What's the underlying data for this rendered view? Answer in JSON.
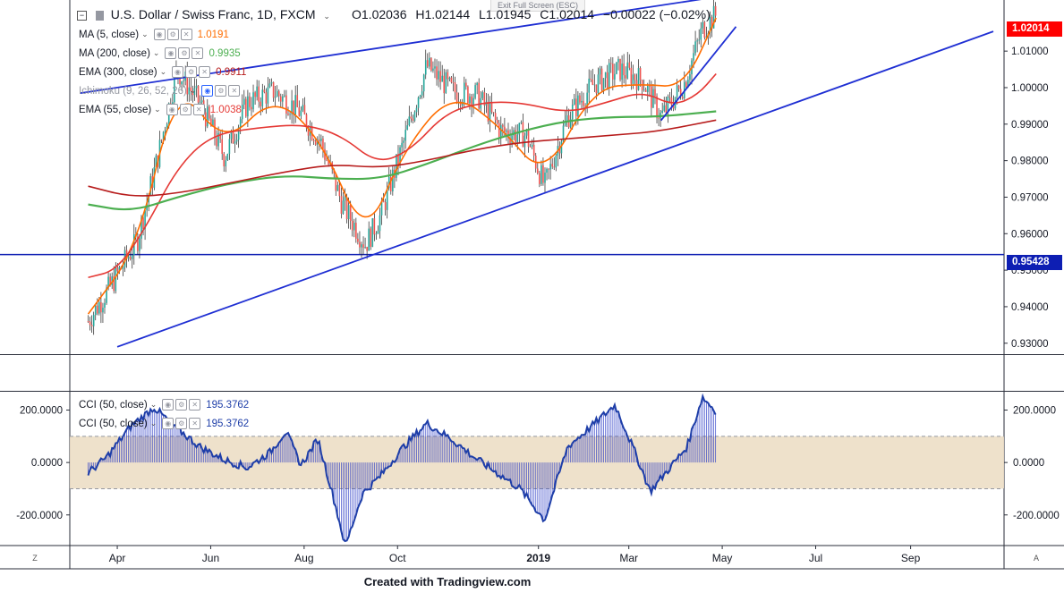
{
  "exit_fullscreen": "Exit Full Screen (ESC)",
  "header": {
    "title": "U.S. Dollar / Swiss Franc, 1D, FXCM",
    "open": "O1.02036",
    "high": "H1.02144",
    "low": "L1.01945",
    "close": "C1.02014",
    "change": "−0.00022 (−0.02%)"
  },
  "indicators": [
    {
      "label": "MA (5, close)",
      "value": "1.0191",
      "color": "#ff6d00"
    },
    {
      "label": "MA (200, close)",
      "value": "0.9935",
      "color": "#4caf50"
    },
    {
      "label": "EMA (300, close)",
      "value": "0.9911",
      "color": "#b71c1c"
    },
    {
      "label": "Ichimoku (9, 26, 52, 26)",
      "value": "",
      "color": "#9598a1"
    },
    {
      "label": "EMA (55, close)",
      "value": "1.0038",
      "color": "#e53935"
    }
  ],
  "cci_legend": [
    {
      "label": "CCI (50, close)",
      "value": "195.3762",
      "color": "#1e3ea8"
    },
    {
      "label": "CCI (50, close)",
      "value": "195.3762",
      "color": "#1e3ea8"
    }
  ],
  "price_axis": {
    "ticks": [
      "1.01000",
      "1.00000",
      "0.99000",
      "0.98000",
      "0.97000",
      "0.96000",
      "0.95000",
      "0.94000",
      "0.93000"
    ],
    "current_label": "1.02014",
    "current_color": "#ff0000",
    "hline_label": "0.95428",
    "hline_color": "#0d1eb3"
  },
  "cci_axis": {
    "ticks_right": [
      "200.0000",
      "0.0000",
      "-200.0000"
    ],
    "ticks_left": [
      "200.0000",
      "0.0000",
      "-200.0000"
    ]
  },
  "time_axis": {
    "labels": [
      "Apr",
      "Jun",
      "Aug",
      "Oct",
      "2019",
      "Mar",
      "May",
      "Jul",
      "Sep"
    ]
  },
  "corner_left": "Z",
  "corner_right": "A",
  "footer": "Created with Tradingview.com",
  "chart_data": {
    "type": "line",
    "title": "U.S. Dollar / Swiss Franc, 1D, FXCM",
    "x_range": [
      "2018-03",
      "2019-11"
    ],
    "ylim": [
      0.927,
      1.024
    ],
    "last_close": 1.02014,
    "horizontal_line": 0.95428,
    "series": [
      {
        "name": "USDCHF close",
        "color": "#26a69a",
        "x": [
          "2018-03-13",
          "2018-03-28",
          "2018-04-14",
          "2018-04-28",
          "2018-05-10",
          "2018-05-26",
          "2018-06-10",
          "2018-06-25",
          "2018-07-12",
          "2018-07-28",
          "2018-08-12",
          "2018-08-26",
          "2018-09-10",
          "2018-09-20",
          "2018-10-05",
          "2018-10-20",
          "2018-11-06",
          "2018-11-22",
          "2018-12-08",
          "2018-12-24",
          "2019-01-05",
          "2019-01-20",
          "2019-02-06",
          "2019-02-23",
          "2019-03-10",
          "2019-03-22",
          "2019-04-06",
          "2019-04-18",
          "2019-04-27"
        ],
        "y": [
          0.936,
          0.946,
          0.958,
          0.982,
          1.005,
          0.995,
          0.981,
          0.996,
          0.999,
          0.994,
          0.985,
          0.968,
          0.957,
          0.965,
          0.985,
          1.006,
          0.999,
          0.998,
          0.988,
          0.987,
          0.973,
          0.992,
          1.001,
          1.005,
          1.002,
          0.992,
          1.001,
          1.016,
          1.02
        ]
      },
      {
        "name": "MA (5, close)",
        "color": "#ff6d00",
        "x": [
          "2018-03-13",
          "2018-04-14",
          "2018-05-10",
          "2018-06-10",
          "2018-07-12",
          "2018-08-12",
          "2018-09-10",
          "2018-10-05",
          "2018-11-06",
          "2018-12-08",
          "2019-01-05",
          "2019-02-06",
          "2019-03-10",
          "2019-04-06",
          "2019-04-27"
        ],
        "y": [
          0.938,
          0.956,
          1.002,
          0.984,
          0.998,
          0.986,
          0.958,
          0.983,
          0.999,
          0.989,
          0.975,
          1.0,
          1.001,
          1.0,
          1.0191
        ]
      },
      {
        "name": "EMA (55, close)",
        "color": "#e53935",
        "x": [
          "2018-03-13",
          "2018-04-01",
          "2018-04-20",
          "2018-05-10",
          "2018-06-01",
          "2018-07-01",
          "2018-08-01",
          "2018-08-25",
          "2018-09-18",
          "2018-10-10",
          "2018-11-01",
          "2018-11-25",
          "2018-12-20",
          "2019-01-20",
          "2019-02-15",
          "2019-03-10",
          "2019-03-30",
          "2019-04-15",
          "2019-04-27"
        ],
        "y": [
          0.948,
          0.95,
          0.962,
          0.978,
          0.987,
          0.989,
          0.99,
          0.987,
          0.979,
          0.983,
          0.993,
          0.996,
          0.996,
          0.993,
          0.996,
          0.999,
          0.995,
          0.998,
          1.0038
        ]
      },
      {
        "name": "MA (200, close)",
        "color": "#4caf50",
        "x": [
          "2018-03-13",
          "2018-04-10",
          "2018-05-10",
          "2018-06-15",
          "2018-07-20",
          "2018-08-20",
          "2018-09-20",
          "2018-10-20",
          "2018-11-20",
          "2018-12-20",
          "2019-01-20",
          "2019-02-20",
          "2019-03-20",
          "2019-04-27"
        ],
        "y": [
          0.968,
          0.966,
          0.97,
          0.974,
          0.976,
          0.975,
          0.975,
          0.979,
          0.984,
          0.988,
          0.991,
          0.992,
          0.992,
          0.9935
        ]
      },
      {
        "name": "EMA (300, close)",
        "color": "#b71c1c",
        "x": [
          "2018-03-13",
          "2018-04-10",
          "2018-05-10",
          "2018-06-15",
          "2018-07-20",
          "2018-08-20",
          "2018-09-20",
          "2018-10-20",
          "2018-11-20",
          "2018-12-20",
          "2019-01-20",
          "2019-02-20",
          "2019-03-20",
          "2019-04-27"
        ],
        "y": [
          0.973,
          0.97,
          0.971,
          0.974,
          0.977,
          0.979,
          0.978,
          0.98,
          0.983,
          0.985,
          0.986,
          0.987,
          0.988,
          0.9911
        ]
      }
    ],
    "trendlines": [
      {
        "from": [
          "2018-03-08",
          0.9985
        ],
        "to": [
          "2019-05-06",
          1.0254
        ]
      },
      {
        "from": [
          "2018-04-01",
          0.929
        ],
        "to": [
          "2019-10-25",
          1.0154
        ]
      },
      {
        "from": [
          "2019-03-22",
          0.991
        ],
        "to": [
          "2019-05-10",
          1.0167
        ]
      }
    ],
    "cci": {
      "name": "CCI (50, close)",
      "ylim": [
        -310,
        270
      ],
      "band": [
        -100,
        100
      ],
      "last": 195.3762,
      "x": [
        "2018-03-13",
        "2018-03-25",
        "2018-04-10",
        "2018-04-25",
        "2018-05-08",
        "2018-05-25",
        "2018-06-10",
        "2018-06-25",
        "2018-07-10",
        "2018-07-20",
        "2018-07-30",
        "2018-08-10",
        "2018-08-20",
        "2018-08-28",
        "2018-09-08",
        "2018-09-20",
        "2018-10-05",
        "2018-10-20",
        "2018-11-05",
        "2018-11-20",
        "2018-12-05",
        "2018-12-20",
        "2019-01-05",
        "2019-01-20",
        "2019-02-05",
        "2019-02-20",
        "2019-03-05",
        "2019-03-15",
        "2019-03-25",
        "2019-04-08",
        "2019-04-18",
        "2019-04-27"
      ],
      "y": [
        -40,
        20,
        140,
        210,
        140,
        60,
        10,
        -20,
        40,
        120,
        -10,
        90,
        -130,
        -320,
        -120,
        -50,
        60,
        150,
        90,
        20,
        -40,
        -100,
        -220,
        60,
        140,
        220,
        40,
        -110,
        -40,
        60,
        250,
        195.3762
      ]
    }
  }
}
